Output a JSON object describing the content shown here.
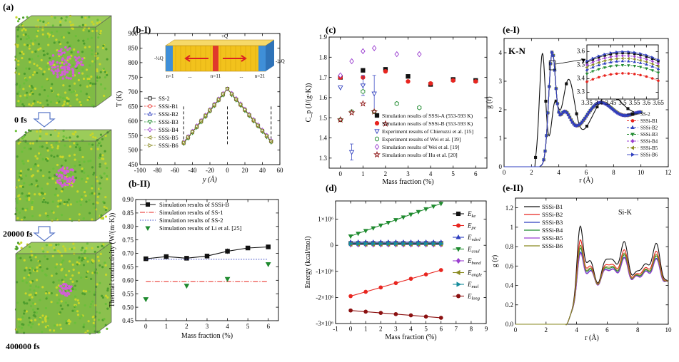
{
  "colors": {
    "black": "#111111",
    "red": "#e8251f",
    "blue": "#2f3fbf",
    "green": "#1e8a2e",
    "violet": "#9b3fd0",
    "olive": "#8a8a20",
    "teal": "#168c9c",
    "darkred": "#8b1010",
    "atom_green": "#6bbf3a",
    "atom_yellow": "#c9d62a",
    "atom_pink": "#d25fd6"
  },
  "panel_a": {
    "label": "(a)",
    "snapshots": [
      {
        "label": "0 fs",
        "cluster": 1.0
      },
      {
        "label": "20000 fs",
        "cluster": 0.62
      },
      {
        "label": "400000 fs",
        "cluster": 0.4
      }
    ]
  },
  "chart_data": [
    {
      "id": "b1",
      "panel_label": "(b-I)",
      "type": "line",
      "xlabel": "y (Å)",
      "ylabel": "T (K)",
      "xlim": [
        -100,
        60
      ],
      "ylim": [
        450,
        900
      ],
      "xticks": [
        -100,
        -80,
        -60,
        -40,
        -20,
        0,
        20,
        40,
        60
      ],
      "yticks": [
        450,
        500,
        550,
        600,
        650,
        700,
        750,
        800,
        850,
        900
      ],
      "dashed_verticals": [
        -50,
        0,
        50
      ],
      "profile_x": [
        -50,
        0,
        50
      ],
      "profile_y": [
        525,
        710,
        530
      ],
      "series": [
        {
          "name": "SS-2",
          "marker": "square",
          "color": "black",
          "offset": 0
        },
        {
          "name": "SSSi-B1",
          "marker": "circle",
          "color": "red",
          "offset": -3
        },
        {
          "name": "SSSi-B2",
          "marker": "triangle",
          "color": "blue",
          "offset": 3
        },
        {
          "name": "SSSi-B3",
          "marker": "down",
          "color": "green",
          "offset": -5
        },
        {
          "name": "SSSi-B4",
          "marker": "diamond",
          "color": "violet",
          "offset": 5
        },
        {
          "name": "SSSi-B5",
          "marker": "left",
          "color": "olive",
          "offset": -2
        },
        {
          "name": "SSSi-B6",
          "marker": "right",
          "color": "olive",
          "offset": 2
        }
      ],
      "inset": {
        "top_label": "+Q",
        "left_label": "-½Q",
        "right_label": "-½Q",
        "n_labels": [
          "n=1",
          "...",
          "n=11",
          "...",
          "n=21"
        ]
      }
    },
    {
      "id": "b2",
      "panel_label": "(b-II)",
      "type": "line",
      "xlabel": "Mass fraction (%)",
      "ylabel": "Thermal conductivity (W/(m·K))",
      "xlim": [
        -0.5,
        6.5
      ],
      "ylim": [
        0.45,
        0.9
      ],
      "xticks": [
        0,
        1,
        2,
        3,
        4,
        5,
        6
      ],
      "yticks": [
        0.45,
        0.5,
        0.55,
        0.6,
        0.65,
        0.7,
        0.75,
        0.8,
        0.85,
        0.9
      ],
      "series": [
        {
          "name": "Simulation results of SSSi-B",
          "style": "line-marker",
          "marker": "square",
          "color": "black",
          "x": [
            0,
            1,
            2,
            3,
            4,
            5,
            6
          ],
          "y": [
            0.68,
            0.688,
            0.682,
            0.69,
            0.708,
            0.72,
            0.724
          ],
          "err": [
            0.004,
            0.006,
            0.005,
            0.005,
            0.01,
            0.008,
            0.006
          ]
        },
        {
          "name": "Simulation results of SS-1",
          "style": "dashdot",
          "color": "red",
          "y_const": 0.595
        },
        {
          "name": "Simulation results of SS-2",
          "style": "dotted",
          "color": "blue",
          "y_const": 0.678
        },
        {
          "name": "Simulation results of Li et al. [25]",
          "style": "marker",
          "marker": "down",
          "color": "green",
          "x": [
            0,
            2,
            4,
            6
          ],
          "y": [
            0.53,
            0.58,
            0.605,
            0.66
          ]
        }
      ]
    },
    {
      "id": "c",
      "panel_label": "(c)",
      "type": "scatter",
      "xlabel": "Mass fraction (%)",
      "ylabel": "C_p (J/(g·K))",
      "xlim": [
        -0.5,
        6.5
      ],
      "ylim": [
        1.25,
        1.9
      ],
      "xticks": [
        0,
        1,
        2,
        3,
        4,
        5,
        6
      ],
      "yticks": [
        1.3,
        1.4,
        1.5,
        1.6,
        1.7,
        1.8,
        1.9
      ],
      "series": [
        {
          "name": "Simulation results of SSSi-A (553-593 K)",
          "marker": "square",
          "color": "black",
          "fill": true,
          "x": [
            0,
            1,
            2,
            3,
            4,
            5,
            6
          ],
          "y": [
            1.7,
            1.735,
            1.74,
            1.705,
            1.665,
            1.69,
            1.685
          ]
        },
        {
          "name": "Simulation results of SSSi-B (553-593 K)",
          "marker": "circle",
          "color": "red",
          "fill": true,
          "x": [
            0,
            1,
            2,
            3,
            4,
            5,
            6
          ],
          "y": [
            1.7,
            1.7,
            1.73,
            1.68,
            1.67,
            1.685,
            1.68
          ]
        },
        {
          "name": "Experiment results of Chieruzzi et al. [15]",
          "marker": "down",
          "color": "blue",
          "fill": false,
          "x": [
            0,
            0.5,
            1,
            1.5
          ],
          "y": [
            1.65,
            1.33,
            1.66,
            1.62
          ],
          "err": [
            0,
            0.04,
            0.05,
            0.09
          ]
        },
        {
          "name": "Experiment results of Wei et al. [19]",
          "marker": "hexagon",
          "color": "green",
          "fill": false,
          "x": [
            0,
            0.5,
            1,
            1.5,
            2.5,
            3.5
          ],
          "y": [
            1.49,
            1.53,
            1.63,
            1.53,
            1.57,
            1.55
          ]
        },
        {
          "name": "Simulation results of Wei et al. [19]",
          "marker": "diamond",
          "color": "violet",
          "fill": false,
          "x": [
            0,
            0.5,
            1,
            1.5,
            2.5,
            3.5
          ],
          "y": [
            1.71,
            1.78,
            1.83,
            1.845,
            1.815,
            1.815
          ]
        },
        {
          "name": "Simulation results of Hu et al. [20]",
          "marker": "star",
          "color": "darkred",
          "fill": false,
          "x": [
            0,
            0.5,
            1,
            1.5,
            2
          ],
          "y": [
            1.49,
            1.525,
            1.57,
            1.53,
            1.47
          ]
        }
      ]
    },
    {
      "id": "d",
      "panel_label": "(d)",
      "type": "line",
      "xlabel": "Mass fraction (%)",
      "ylabel": "Energy (kcal/mol)",
      "xlim": [
        -1,
        9
      ],
      "ylim": [
        -3000000,
        1700000
      ],
      "xticks": [
        -1,
        0,
        1,
        2,
        3,
        4,
        5,
        6,
        7,
        8,
        9
      ],
      "yticks": [
        -3000000,
        -2000000,
        -1000000,
        0,
        1000000
      ],
      "ytick_labels": [
        "-3×10⁶",
        "-2×10⁶",
        "-1×10⁶",
        "0",
        "1×10⁶"
      ],
      "series": [
        {
          "name": "E_ke",
          "sub": "ke",
          "marker": "square",
          "color": "black",
          "x": [
            0,
            0.5,
            1,
            1.5,
            2,
            2.5,
            3,
            3.5,
            4,
            4.5,
            5,
            5.5,
            6
          ],
          "y_start": 80000,
          "y_end": 80000
        },
        {
          "name": "E_pe",
          "sub": "pe",
          "marker": "circle",
          "color": "red",
          "x": [
            0,
            1,
            2,
            3,
            4,
            5,
            6
          ],
          "y_start": -1950000,
          "y_end": -950000
        },
        {
          "name": "E_vdwl",
          "sub": "vdwl",
          "marker": "triangle",
          "color": "blue",
          "x": [
            0,
            0.5,
            1,
            1.5,
            2,
            2.5,
            3,
            3.5,
            4,
            4.5,
            5,
            5.5,
            6
          ],
          "y_start": 120000,
          "y_end": 120000
        },
        {
          "name": "E_coul",
          "sub": "coul",
          "marker": "down",
          "color": "green",
          "x": [
            0,
            0.5,
            1,
            1.5,
            2,
            2.5,
            3,
            3.5,
            4,
            4.5,
            5,
            5.5,
            6
          ],
          "y_start": 350000,
          "y_end": 1600000
        },
        {
          "name": "E_bond",
          "sub": "bond",
          "marker": "diamond",
          "color": "violet",
          "x": [
            0,
            0.5,
            1,
            1.5,
            2,
            2.5,
            3,
            3.5,
            4,
            4.5,
            5,
            5.5,
            6
          ],
          "y_start": 20000,
          "y_end": 20000
        },
        {
          "name": "E_angle",
          "sub": "angle",
          "marker": "left",
          "color": "olive",
          "x": [
            0,
            0.5,
            1,
            1.5,
            2,
            2.5,
            3,
            3.5,
            4,
            4.5,
            5,
            5.5,
            6
          ],
          "y_start": 40000,
          "y_end": 40000
        },
        {
          "name": "E_mol",
          "sub": "mol",
          "marker": "right",
          "color": "teal",
          "x": [
            0,
            0.5,
            1,
            1.5,
            2,
            2.5,
            3,
            3.5,
            4,
            4.5,
            5,
            5.5,
            6
          ],
          "y_start": 60000,
          "y_end": 60000
        },
        {
          "name": "E_long",
          "sub": "long",
          "marker": "circle",
          "color": "darkred",
          "x": [
            0,
            1,
            2,
            3,
            4,
            5,
            6
          ],
          "y_start": -2500000,
          "y_end": -2780000
        }
      ]
    },
    {
      "id": "e1",
      "panel_label": "(e-I)",
      "type": "line",
      "title": "K-N",
      "xlabel": "r (Å)",
      "ylabel": "g (r)",
      "xlim": [
        0,
        12
      ],
      "ylim": [
        0,
        4.5
      ],
      "xticks": [
        0,
        2,
        4,
        6,
        8,
        10,
        12
      ],
      "yticks": [
        0,
        1,
        2,
        3,
        4
      ],
      "series": [
        {
          "name": "SS-2",
          "marker": "square",
          "color": "black",
          "style": "solid"
        },
        {
          "name": "SSSi-B1",
          "marker": "circle",
          "color": "red",
          "style": "dash"
        },
        {
          "name": "SSSi-B2",
          "marker": "triangle",
          "color": "blue",
          "style": "dash"
        },
        {
          "name": "SSSi-B3",
          "marker": "down",
          "color": "green",
          "style": "dash"
        },
        {
          "name": "SSSi-B4",
          "marker": "diamond",
          "color": "violet",
          "style": "dash"
        },
        {
          "name": "SSSi-B5",
          "marker": "left",
          "color": "olive",
          "style": "dash"
        },
        {
          "name": "SSSi-B6",
          "marker": "right",
          "color": "blue",
          "style": "solid"
        }
      ],
      "inset": {
        "xlim": [
          3.35,
          3.65
        ],
        "ylim": [
          3.25,
          3.65
        ],
        "xticks": [
          3.35,
          3.4,
          3.45,
          3.5,
          3.55,
          3.6,
          3.65
        ],
        "yticks": [
          3.3,
          3.4,
          3.5,
          3.6
        ],
        "peaks": [
          3.44,
          3.5,
          3.53,
          3.55,
          3.57,
          3.59,
          3.6
        ]
      }
    },
    {
      "id": "e2",
      "panel_label": "(e-II)",
      "type": "line",
      "title": "Si-K",
      "xlabel": "r (Å)",
      "ylabel": "g (r)",
      "xlim": [
        0,
        10
      ],
      "ylim": [
        0,
        1.3
      ],
      "xticks": [
        0,
        2,
        4,
        6,
        8,
        10
      ],
      "yticks": [
        0,
        0.2,
        0.4,
        0.6,
        0.8,
        1.0,
        1.2
      ],
      "series": [
        {
          "name": "SSSi-B1",
          "color": "black",
          "scale": 1.0
        },
        {
          "name": "SSSi-B2",
          "color": "red",
          "scale": 0.8
        },
        {
          "name": "SSSi-B3",
          "color": "blue",
          "scale": 0.62
        },
        {
          "name": "SSSi-B4",
          "color": "green",
          "scale": 0.68
        },
        {
          "name": "SSSi-B5",
          "color": "violet",
          "scale": 0.6
        },
        {
          "name": "SSSi-B6",
          "color": "olive",
          "scale": 0.72
        }
      ]
    }
  ]
}
